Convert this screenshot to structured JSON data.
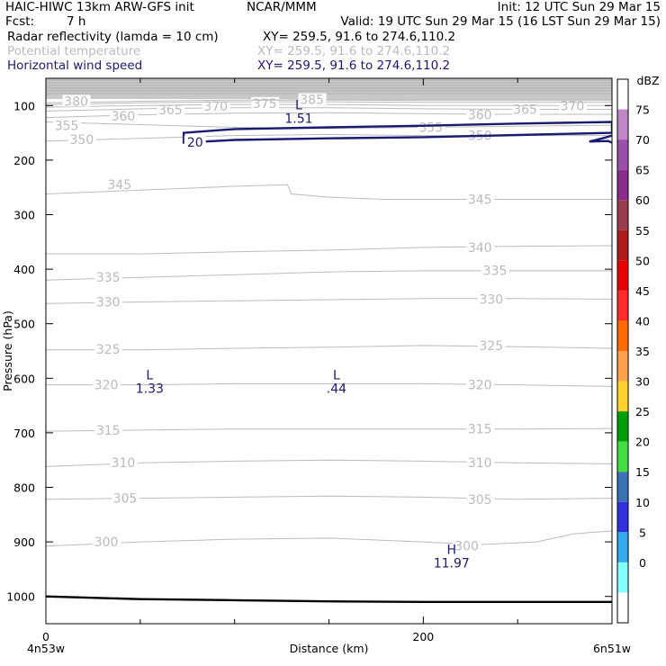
{
  "header": {
    "line1_left": "HAIC-HIWC 13km ARW-GFS init",
    "line1_mid": "NCAR/MMM",
    "line1_right": "Init: 12 UTC Sun 29 Mar 15",
    "line2_left_label": "Fcst:",
    "line2_left_value": "7 h",
    "line2_right": "Valid: 19 UTC Sun 29 Mar 15 (16 LST Sun 29 Mar 15)"
  },
  "fields": [
    {
      "name": "Radar reflectivity (lamda = 10 cm)",
      "xy": "XY= 259.5, 91.6 to 274.6,110.2",
      "color": "#000000"
    },
    {
      "name": "Potential temperature",
      "xy": "XY= 259.5, 91.6 to 274.6,110.2",
      "color": "#bbbbbb"
    },
    {
      "name": "Horizontal wind speed",
      "xy": "XY= 259.5, 91.6 to 274.6,110.2",
      "color": "#1a1a70"
    }
  ],
  "chart_data": {
    "type": "cross-section contour",
    "xlabel": "Distance (km)",
    "ylabel": "Pressure (hPa)",
    "xlim": [
      0,
      300
    ],
    "ylim": [
      1050,
      50
    ],
    "x_ticks": [
      {
        "value": 0,
        "label": "0"
      },
      {
        "value": 200,
        "label": "200"
      }
    ],
    "x_minor_ticks": [
      50,
      100,
      150,
      250,
      300
    ],
    "x_endpoints": {
      "left": "4n53w",
      "right": "6n51w"
    },
    "y_ticks": [
      100,
      200,
      300,
      400,
      500,
      600,
      700,
      800,
      900,
      1000
    ],
    "y_tick_labels": [
      "100",
      "200",
      "300",
      "400",
      "500",
      "600",
      "700",
      "800",
      "900",
      "1000"
    ],
    "theta_color": "#bbbbbb",
    "wind_color": "#1a1a70",
    "ground_color": "#000000",
    "missing_region": {
      "p_top": 50,
      "p_bottom": 88,
      "color": "#c8c8c8"
    },
    "theta_contours": [
      {
        "value": 300,
        "label": "300",
        "points": [
          [
            0,
            908
          ],
          [
            50,
            900
          ],
          [
            100,
            895
          ],
          [
            150,
            893
          ],
          [
            200,
            900
          ],
          [
            230,
            905
          ],
          [
            260,
            900
          ],
          [
            280,
            885
          ],
          [
            300,
            880
          ]
        ],
        "label_positions": [
          [
            32,
            900
          ],
          [
            223,
            907
          ]
        ]
      },
      {
        "value": 305,
        "label": "305",
        "points": [
          [
            0,
            822
          ],
          [
            50,
            820
          ],
          [
            100,
            818
          ],
          [
            150,
            816
          ],
          [
            200,
            818
          ],
          [
            250,
            822
          ],
          [
            300,
            820
          ]
        ],
        "label_positions": [
          [
            42,
            820
          ],
          [
            230,
            822
          ]
        ]
      },
      {
        "value": 310,
        "label": "310",
        "points": [
          [
            0,
            762
          ],
          [
            50,
            755
          ],
          [
            100,
            752
          ],
          [
            150,
            750
          ],
          [
            200,
            752
          ],
          [
            250,
            755
          ],
          [
            300,
            757
          ]
        ],
        "label_positions": [
          [
            41,
            755
          ],
          [
            230,
            755
          ]
        ]
      },
      {
        "value": 315,
        "label": "315",
        "points": [
          [
            0,
            697
          ],
          [
            50,
            695
          ],
          [
            100,
            693
          ],
          [
            150,
            693
          ],
          [
            200,
            693
          ],
          [
            250,
            693
          ],
          [
            300,
            692
          ]
        ],
        "label_positions": [
          [
            33,
            695
          ],
          [
            230,
            693
          ]
        ]
      },
      {
        "value": 320,
        "label": "320",
        "points": [
          [
            0,
            612
          ],
          [
            50,
            612
          ],
          [
            100,
            610
          ],
          [
            150,
            610
          ],
          [
            200,
            610
          ],
          [
            250,
            612
          ],
          [
            300,
            615
          ]
        ],
        "label_positions": [
          [
            32,
            612
          ],
          [
            230,
            612
          ]
        ]
      },
      {
        "value": 325,
        "label": "325",
        "points": [
          [
            0,
            548
          ],
          [
            50,
            548
          ],
          [
            100,
            545
          ],
          [
            150,
            543
          ],
          [
            200,
            540
          ],
          [
            250,
            542
          ],
          [
            300,
            545
          ]
        ],
        "label_positions": [
          [
            33,
            547
          ],
          [
            236,
            540
          ]
        ]
      },
      {
        "value": 330,
        "label": "330",
        "points": [
          [
            0,
            463
          ],
          [
            50,
            460
          ],
          [
            100,
            458
          ],
          [
            150,
            456
          ],
          [
            200,
            454
          ],
          [
            250,
            454
          ],
          [
            300,
            455
          ]
        ],
        "label_positions": [
          [
            33,
            460
          ],
          [
            236,
            455
          ]
        ]
      },
      {
        "value": 335,
        "label": "335",
        "points": [
          [
            0,
            420
          ],
          [
            50,
            415
          ],
          [
            100,
            410
          ],
          [
            150,
            405
          ],
          [
            200,
            403
          ],
          [
            250,
            403
          ],
          [
            300,
            403
          ]
        ],
        "label_positions": [
          [
            33,
            415
          ],
          [
            238,
            402
          ]
        ]
      },
      {
        "value": 340,
        "label": "340",
        "points": [
          [
            0,
            372
          ],
          [
            50,
            372
          ],
          [
            100,
            368
          ],
          [
            150,
            365
          ],
          [
            200,
            360
          ],
          [
            250,
            358
          ],
          [
            300,
            357
          ]
        ],
        "label_positions": [
          [
            230,
            360
          ]
        ]
      },
      {
        "value": 345,
        "label": "345",
        "points": [
          [
            0,
            262
          ],
          [
            50,
            255
          ],
          [
            100,
            248
          ],
          [
            128,
            245
          ],
          [
            130,
            262
          ],
          [
            150,
            268
          ],
          [
            180,
            272
          ],
          [
            200,
            272
          ],
          [
            250,
            272
          ],
          [
            300,
            272
          ]
        ],
        "label_positions": [
          [
            39,
            245
          ],
          [
            230,
            272
          ]
        ]
      },
      {
        "value": 350,
        "label": "350",
        "points": [
          [
            0,
            165
          ],
          [
            50,
            160
          ],
          [
            100,
            155
          ],
          [
            150,
            153
          ],
          [
            200,
            155
          ],
          [
            250,
            155
          ],
          [
            300,
            155
          ]
        ],
        "label_positions": [
          [
            19,
            162
          ],
          [
            230,
            155
          ]
        ]
      },
      {
        "value": 355,
        "label": "355",
        "points": [
          [
            0,
            130
          ],
          [
            50,
            135
          ],
          [
            100,
            140
          ],
          [
            150,
            142
          ],
          [
            200,
            140
          ],
          [
            250,
            138
          ],
          [
            300,
            136
          ]
        ],
        "label_positions": [
          [
            11,
            137
          ],
          [
            204,
            140
          ]
        ]
      },
      {
        "value": 360,
        "label": "360",
        "points": [
          [
            0,
            122
          ],
          [
            50,
            117
          ],
          [
            100,
            114
          ],
          [
            150,
            113
          ],
          [
            200,
            115
          ],
          [
            250,
            116
          ],
          [
            300,
            116
          ]
        ],
        "label_positions": [
          [
            41,
            119
          ],
          [
            230,
            117
          ]
        ]
      },
      {
        "value": 365,
        "label": "365",
        "points": [
          [
            0,
            110
          ],
          [
            50,
            106
          ],
          [
            100,
            104
          ],
          [
            150,
            104
          ],
          [
            200,
            106
          ],
          [
            250,
            107
          ],
          [
            300,
            107
          ]
        ],
        "label_positions": [
          [
            66,
            108
          ],
          [
            254,
            107
          ]
        ]
      },
      {
        "value": 370,
        "label": "370",
        "points": [
          [
            0,
            103
          ],
          [
            50,
            100
          ],
          [
            100,
            98
          ],
          [
            150,
            98
          ],
          [
            200,
            100
          ],
          [
            250,
            100
          ],
          [
            300,
            100
          ]
        ],
        "label_positions": [
          [
            90,
            101
          ],
          [
            279,
            100
          ]
        ]
      },
      {
        "value": 375,
        "label": "375",
        "points": [
          [
            0,
            98
          ],
          [
            50,
            95
          ],
          [
            100,
            93
          ],
          [
            150,
            93
          ],
          [
            200,
            94
          ],
          [
            300,
            94
          ]
        ],
        "label_positions": [
          [
            116,
            96
          ]
        ]
      },
      {
        "value": 380,
        "label": "380",
        "points": [
          [
            0,
            95
          ],
          [
            50,
            92
          ],
          [
            100,
            90
          ],
          [
            150,
            90
          ],
          [
            200,
            91
          ],
          [
            300,
            91
          ]
        ],
        "label_positions": [
          [
            16,
            92
          ]
        ]
      },
      {
        "value": 385,
        "label": "385",
        "points": [
          [
            110,
            90
          ],
          [
            150,
            89
          ],
          [
            200,
            89
          ],
          [
            300,
            89
          ]
        ],
        "label_positions": [
          [
            141,
            89
          ]
        ]
      }
    ],
    "wind_contour": {
      "value": 20,
      "label": "20",
      "label_position": [
        80,
        167
      ],
      "points": [
        [
          73,
          168
        ],
        [
          100,
          163
        ],
        [
          150,
          160
        ],
        [
          200,
          158
        ],
        [
          250,
          154
        ],
        [
          300,
          150
        ],
        [
          300,
          130
        ],
        [
          250,
          133
        ],
        [
          200,
          137
        ],
        [
          150,
          140
        ],
        [
          100,
          143
        ],
        [
          73,
          150
        ]
      ],
      "tail_points": [
        [
          300,
          168
        ],
        [
          298,
          165
        ],
        [
          288,
          166
        ],
        [
          295,
          160
        ],
        [
          300,
          155
        ]
      ]
    },
    "ground": {
      "points": [
        [
          0,
          1000
        ],
        [
          50,
          1005
        ],
        [
          100,
          1007
        ],
        [
          150,
          1009
        ],
        [
          200,
          1010
        ],
        [
          250,
          1010
        ],
        [
          300,
          1010
        ]
      ]
    },
    "extrema": [
      {
        "type": "L",
        "value": "1.51",
        "x": 134,
        "p": 110
      },
      {
        "type": "L",
        "value": "1.33",
        "x": 55,
        "p": 605
      },
      {
        "type": "L",
        "value": ".44",
        "x": 154,
        "p": 605
      },
      {
        "type": "H",
        "value": "11.97",
        "x": 215,
        "p": 925
      }
    ]
  },
  "colorbar": {
    "unit": "dBZ",
    "levels": [
      {
        "label": "75",
        "color": "#c087c6"
      },
      {
        "label": "70",
        "color": "#9a50a8"
      },
      {
        "label": "65",
        "color": "#8a2c8c"
      },
      {
        "label": "60",
        "color": "#9a3c50"
      },
      {
        "label": "55",
        "color": "#b01a1a"
      },
      {
        "label": "50",
        "color": "#e80000"
      },
      {
        "label": "45",
        "color": "#ff2a2a"
      },
      {
        "label": "40",
        "color": "#ff6a00"
      },
      {
        "label": "35",
        "color": "#ffa24c"
      },
      {
        "label": "30",
        "color": "#ffd230"
      },
      {
        "label": "25",
        "color": "#00a00a"
      },
      {
        "label": "20",
        "color": "#44dd44"
      },
      {
        "label": "15",
        "color": "#3a72b4"
      },
      {
        "label": "10",
        "color": "#3030e0"
      },
      {
        "label": "5",
        "color": "#33aaee"
      },
      {
        "label": "0",
        "color": "#88ffff"
      }
    ]
  }
}
